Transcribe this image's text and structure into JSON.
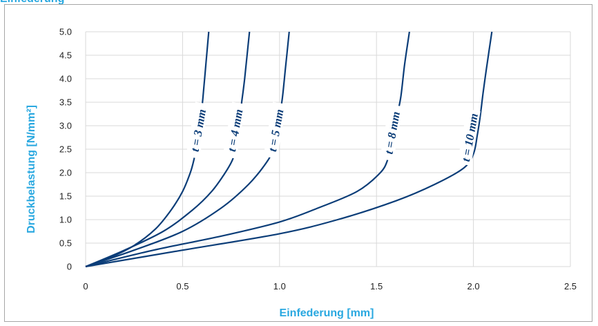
{
  "page": {
    "title": "Einfederung"
  },
  "chart_data": {
    "type": "line",
    "title": "",
    "xlabel": "Einfederung [mm]",
    "ylabel": "Druckbelastung [N/mm²]",
    "xlim": [
      0,
      2.5
    ],
    "ylim": [
      0,
      5.0
    ],
    "x_ticks": [
      "0",
      "0.5",
      "1.0",
      "1.5",
      "2.0",
      "2.5"
    ],
    "y_ticks": [
      "0",
      "0.5",
      "1.0",
      "1.5",
      "2.0",
      "2.5",
      "3.0",
      "3.5",
      "4.0",
      "4.5",
      "5.0"
    ],
    "grid": true,
    "legend": "none",
    "line_color": "#0b3d78",
    "axis_title_color": "#29a8e0",
    "series": [
      {
        "name": "t = 3 mm",
        "points": [
          [
            0,
            0
          ],
          [
            0.13,
            0.2
          ],
          [
            0.25,
            0.45
          ],
          [
            0.36,
            0.8
          ],
          [
            0.44,
            1.2
          ],
          [
            0.5,
            1.6
          ],
          [
            0.54,
            2.0
          ],
          [
            0.56,
            2.3
          ],
          [
            0.575,
            2.6
          ],
          [
            0.59,
            3.0
          ],
          [
            0.605,
            3.6
          ],
          [
            0.62,
            4.3
          ],
          [
            0.635,
            5.0
          ]
        ],
        "label_at": [
          0.58,
          2.9
        ]
      },
      {
        "name": "t = 4 mm",
        "points": [
          [
            0,
            0
          ],
          [
            0.2,
            0.35
          ],
          [
            0.4,
            0.75
          ],
          [
            0.55,
            1.2
          ],
          [
            0.65,
            1.6
          ],
          [
            0.72,
            2.0
          ],
          [
            0.76,
            2.3
          ],
          [
            0.775,
            2.6
          ],
          [
            0.79,
            3.0
          ],
          [
            0.805,
            3.5
          ],
          [
            0.82,
            4.0
          ],
          [
            0.845,
            5.0
          ]
        ],
        "label_at": [
          0.77,
          2.9
        ]
      },
      {
        "name": "t = 5 mm",
        "points": [
          [
            0,
            0
          ],
          [
            0.25,
            0.35
          ],
          [
            0.5,
            0.75
          ],
          [
            0.7,
            1.25
          ],
          [
            0.84,
            1.75
          ],
          [
            0.93,
            2.2
          ],
          [
            0.97,
            2.5
          ],
          [
            0.985,
            2.8
          ],
          [
            1.0,
            3.2
          ],
          [
            1.015,
            3.6
          ],
          [
            1.03,
            4.2
          ],
          [
            1.05,
            5.0
          ]
        ],
        "label_at": [
          0.98,
          2.9
        ]
      },
      {
        "name": "t = 8 mm",
        "points": [
          [
            0,
            0
          ],
          [
            0.35,
            0.35
          ],
          [
            0.7,
            0.65
          ],
          [
            1.0,
            0.95
          ],
          [
            1.2,
            1.25
          ],
          [
            1.4,
            1.6
          ],
          [
            1.52,
            2.0
          ],
          [
            1.56,
            2.3
          ],
          [
            1.58,
            2.65
          ],
          [
            1.6,
            3.1
          ],
          [
            1.625,
            3.6
          ],
          [
            1.645,
            4.3
          ],
          [
            1.67,
            5.0
          ]
        ],
        "label_at": [
          1.58,
          2.85
        ]
      },
      {
        "name": "t = 10 mm",
        "points": [
          [
            0,
            0
          ],
          [
            0.5,
            0.35
          ],
          [
            1.0,
            0.7
          ],
          [
            1.3,
            1.0
          ],
          [
            1.6,
            1.4
          ],
          [
            1.8,
            1.75
          ],
          [
            1.95,
            2.1
          ],
          [
            2.0,
            2.4
          ],
          [
            2.02,
            2.8
          ],
          [
            2.035,
            3.2
          ],
          [
            2.05,
            3.7
          ],
          [
            2.07,
            4.3
          ],
          [
            2.095,
            5.0
          ]
        ],
        "label_at": [
          1.98,
          2.75
        ]
      }
    ]
  }
}
